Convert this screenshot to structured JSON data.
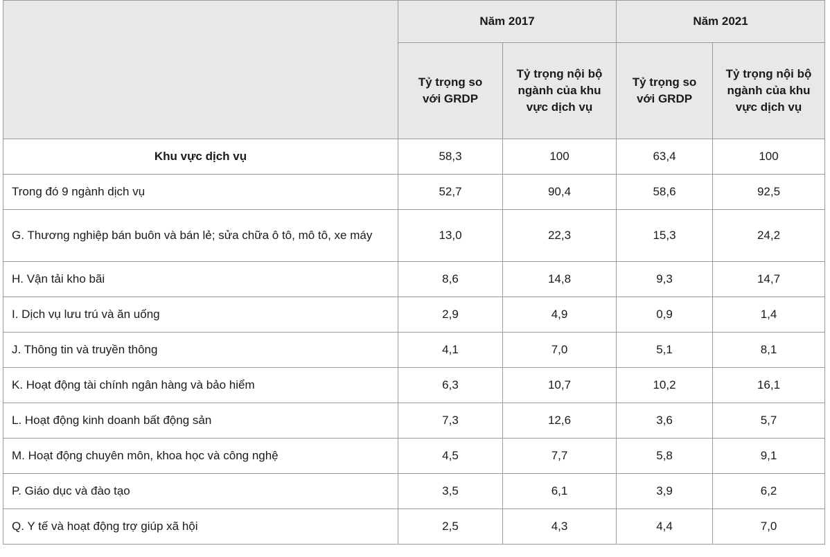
{
  "header": {
    "year_2017": "Năm 2017",
    "year_2021": "Năm 2021",
    "col_a": "Tỷ trọng so với GRDP",
    "col_b": "Tỷ trọng nội bộ ngành của khu vực dịch vụ",
    "col_c": "Tỷ trọng so với GRDP",
    "col_d": "Tỷ trọng nội bộ ngành của khu vực dịch vụ"
  },
  "rows": [
    {
      "label": "Khu vực dịch vụ",
      "v2017_grdp": "58,3",
      "v2017_internal": "100",
      "v2021_grdp": "63,4",
      "v2021_internal": "100"
    },
    {
      "label": "Trong đó 9 ngành dịch vụ",
      "v2017_grdp": "52,7",
      "v2017_internal": "90,4",
      "v2021_grdp": "58,6",
      "v2021_internal": "92,5"
    },
    {
      "label": "G. Thương nghiệp bán buôn và bán lẻ; sửa chữa ô tô, mô tô, xe máy",
      "v2017_grdp": "13,0",
      "v2017_internal": "22,3",
      "v2021_grdp": "15,3",
      "v2021_internal": "24,2"
    },
    {
      "label": "H. Vận tải kho bãi",
      "v2017_grdp": "8,6",
      "v2017_internal": "14,8",
      "v2021_grdp": "9,3",
      "v2021_internal": "14,7"
    },
    {
      "label": "I. Dịch vụ lưu trú và ăn uống",
      "v2017_grdp": "2,9",
      "v2017_internal": "4,9",
      "v2021_grdp": "0,9",
      "v2021_internal": "1,4"
    },
    {
      "label": "J. Thông tin và truyền thông",
      "v2017_grdp": "4,1",
      "v2017_internal": "7,0",
      "v2021_grdp": "5,1",
      "v2021_internal": "8,1"
    },
    {
      "label": "K. Hoạt động tài chính ngân hàng và bảo hiểm",
      "v2017_grdp": "6,3",
      "v2017_internal": "10,7",
      "v2021_grdp": "10,2",
      "v2021_internal": "16,1"
    },
    {
      "label": "L. Hoạt động kinh doanh bất động sản",
      "v2017_grdp": "7,3",
      "v2017_internal": "12,6",
      "v2021_grdp": "3,6",
      "v2021_internal": "5,7"
    },
    {
      "label": "M. Hoạt động chuyên môn, khoa học và công nghệ",
      "v2017_grdp": "4,5",
      "v2017_internal": "7,7",
      "v2021_grdp": "5,8",
      "v2021_internal": "9,1"
    },
    {
      "label": "P. Giáo dục và đào tạo",
      "v2017_grdp": "3,5",
      "v2017_internal": "6,1",
      "v2021_grdp": "3,9",
      "v2021_internal": "6,2"
    },
    {
      "label": "Q. Y tế và hoạt động trợ giúp xã hội",
      "v2017_grdp": "2,5",
      "v2017_internal": "4,3",
      "v2021_grdp": "4,4",
      "v2021_internal": "7,0"
    }
  ]
}
